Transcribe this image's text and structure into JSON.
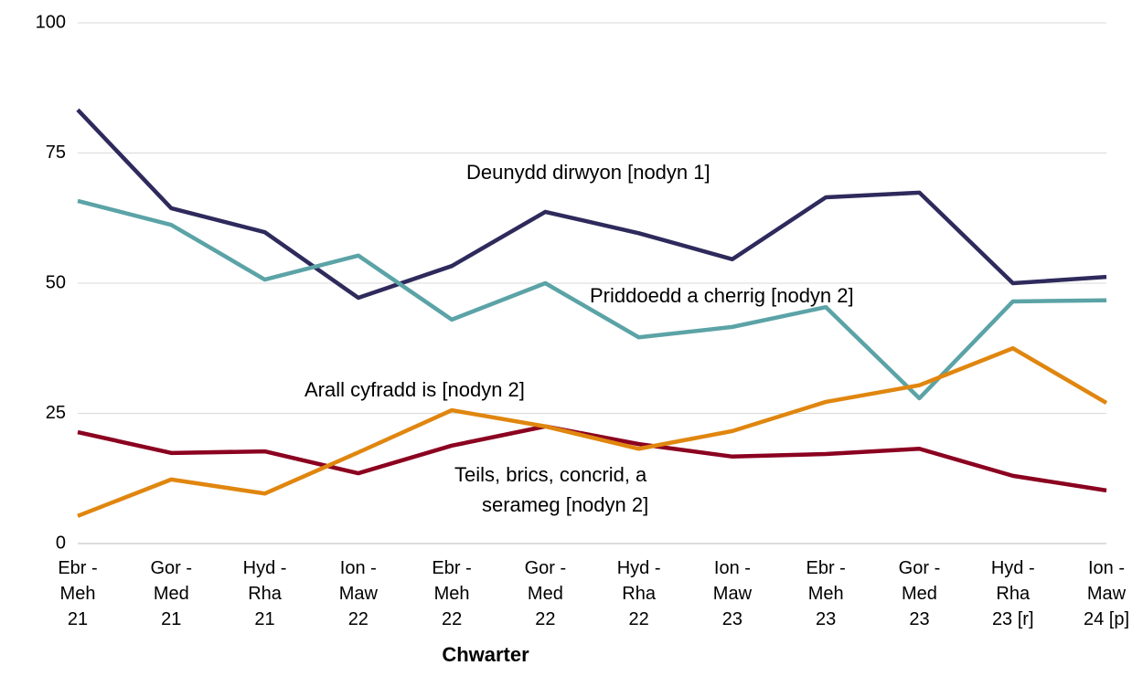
{
  "chart_data": {
    "type": "line",
    "xlabel": "Chwarter",
    "categories": [
      [
        "Ebr -",
        "Meh",
        "21"
      ],
      [
        "Gor -",
        "Med",
        "21"
      ],
      [
        "Hyd -",
        "Rha",
        "21"
      ],
      [
        "Ion -",
        "Maw",
        "22"
      ],
      [
        "Ebr -",
        "Meh",
        "22"
      ],
      [
        "Gor -",
        "Med",
        "22"
      ],
      [
        "Hyd -",
        "Rha",
        "22"
      ],
      [
        "Ion -",
        "Maw",
        "23"
      ],
      [
        "Ebr -",
        "Meh",
        "23"
      ],
      [
        "Gor -",
        "Med",
        "23"
      ],
      [
        "Hyd -",
        "Rha",
        "23 [r]"
      ],
      [
        "Ion -",
        "Maw",
        "24 [p]"
      ]
    ],
    "series": [
      {
        "color": "#2e2a5c",
        "values": [
          83.3,
          64.4,
          59.8,
          47.2,
          53.3,
          63.7,
          59.6,
          54.6,
          66.5,
          67.4,
          50,
          51.2
        ]
      },
      {
        "color": "#5ba3a6",
        "values": [
          65.8,
          61.2,
          50.7,
          55.3,
          43,
          50,
          39.6,
          41.6,
          45.4,
          27.9,
          46.5,
          46.7
        ]
      },
      {
        "color": "#8b0020",
        "values": [
          21.4,
          17.4,
          17.7,
          13.5,
          18.8,
          22.5,
          19.1,
          16.7,
          17.2,
          18.2,
          13,
          10.2
        ]
      },
      {
        "color": "#e0860f",
        "values": [
          5.3,
          12.3,
          9.6,
          17.5,
          25.6,
          22.5,
          18.2,
          21.6,
          27.2,
          30.4,
          37.5,
          27
        ]
      }
    ],
    "annotations": [
      [
        "Deunydd dirwyon  [nodyn 1]"
      ],
      [
        "Priddoedd a cherrig [nodyn 2]"
      ],
      [
        "Teils, brics, concrid, a",
        "serameg [nodyn 2]"
      ],
      [
        "Arall cyfradd is [nodyn 2]"
      ]
    ],
    "ylim": [
      0,
      100
    ],
    "yticks": [
      0,
      25,
      50,
      75,
      100
    ],
    "grid": true
  }
}
